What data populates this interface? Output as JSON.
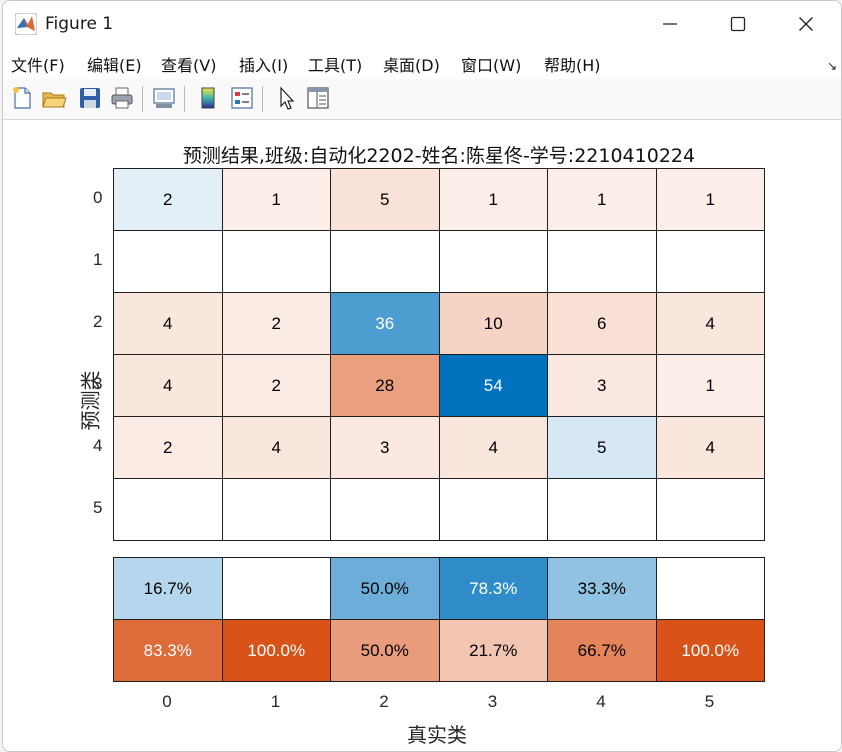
{
  "window": {
    "title": "Figure 1"
  },
  "menu": {
    "items": [
      "文件(F)",
      "编辑(E)",
      "查看(V)",
      "插入(I)",
      "工具(T)",
      "桌面(D)",
      "窗口(W)",
      "帮助(H)"
    ],
    "overflow_icon": "dock-arrow-icon"
  },
  "toolbar": {
    "icons": [
      "new-figure-icon",
      "open-icon",
      "save-icon",
      "print-icon",
      "link-plot-icon",
      "colorbar-icon",
      "legend-icon",
      "pointer-icon",
      "property-editor-icon"
    ]
  },
  "chart_data": {
    "type": "heatmap",
    "title": "预测结果,班级:自动化2202-姓名:陈星佟-学号:2210410224",
    "xlabel": "真实类",
    "ylabel": "预测类",
    "x_categories": [
      "0",
      "1",
      "2",
      "3",
      "4",
      "5"
    ],
    "y_categories": [
      "0",
      "1",
      "2",
      "3",
      "4",
      "5"
    ],
    "matrix": [
      [
        "2",
        "1",
        "5",
        "1",
        "1",
        "1"
      ],
      [
        "",
        "",
        "",
        "",
        "",
        ""
      ],
      [
        "4",
        "2",
        "36",
        "10",
        "6",
        "4"
      ],
      [
        "4",
        "2",
        "28",
        "54",
        "3",
        "1"
      ],
      [
        "2",
        "4",
        "3",
        "4",
        "5",
        "4"
      ],
      [
        "",
        "",
        "",
        "",
        "",
        ""
      ]
    ],
    "column_summary": [
      [
        "16.7%",
        "",
        "50.0%",
        "78.3%",
        "33.3%",
        ""
      ],
      [
        "83.3%",
        "100.0%",
        "50.0%",
        "21.7%",
        "66.7%",
        "100.0%"
      ]
    ],
    "colors": {
      "diagonal_max": "#0072bd",
      "off_diagonal_max": "#d95319",
      "empty": "#ffffff"
    }
  }
}
